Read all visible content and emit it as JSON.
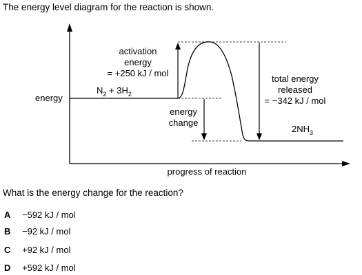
{
  "intro": "The energy level diagram for the reaction is shown.",
  "diagram": {
    "y_axis_label": "energy",
    "x_axis_label": "progress of reaction",
    "activation_lines": [
      "activation",
      "energy",
      "= +250 kJ / mol"
    ],
    "energy_change_lines": [
      "energy",
      "change"
    ],
    "total_energy_lines": [
      "total energy",
      "released",
      "= −342 kJ / mol"
    ],
    "reactants": {
      "n": "N",
      "n_sub": "2",
      "plus": " + 3H",
      "h_sub": "2"
    },
    "product": {
      "text": "2NH",
      "sub": "3"
    }
  },
  "question": "What is the energy change for the reaction?",
  "options": [
    {
      "letter": "A",
      "text": "−592 kJ / mol"
    },
    {
      "letter": "B",
      "text": "−92 kJ / mol"
    },
    {
      "letter": "C",
      "text": "+92 kJ / mol"
    },
    {
      "letter": "D",
      "text": "+592 kJ / mol"
    }
  ]
}
